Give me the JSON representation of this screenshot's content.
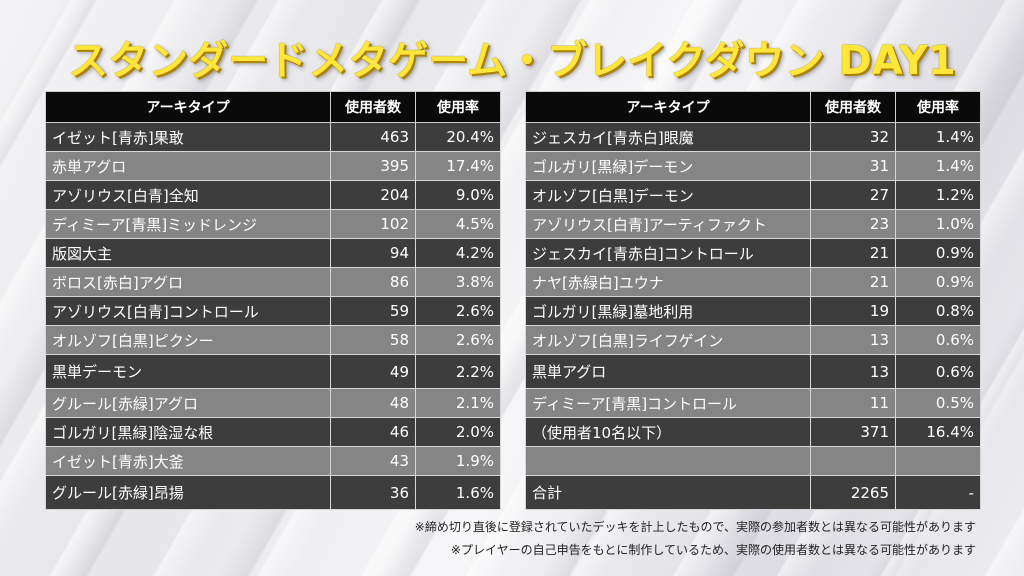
{
  "title": "スタンダードメタゲーム・ブレイクダウン DAY1",
  "headers": {
    "archetype": "アーキタイプ",
    "users": "使用者数",
    "rate": "使用率"
  },
  "left_rows": [
    {
      "name": "イゼット[青赤]果敢",
      "users": "463",
      "rate": "20.4%"
    },
    {
      "name": "赤単アグロ",
      "users": "395",
      "rate": "17.4%"
    },
    {
      "name": "アゾリウス[白青]全知",
      "users": "204",
      "rate": "9.0%"
    },
    {
      "name": "ディミーア[青黒]ミッドレンジ",
      "users": "102",
      "rate": "4.5%"
    },
    {
      "name": "版図大主",
      "users": "94",
      "rate": "4.2%"
    },
    {
      "name": "ボロス[赤白]アグロ",
      "users": "86",
      "rate": "3.8%"
    },
    {
      "name": "アゾリウス[白青]コントロール",
      "users": "59",
      "rate": "2.6%"
    },
    {
      "name": "オルゾフ[白黒]ピクシー",
      "users": "58",
      "rate": "2.6%"
    },
    {
      "name": "黒単デーモン",
      "users": "49",
      "rate": "2.2%"
    },
    {
      "name": "グルール[赤緑]アグロ",
      "users": "48",
      "rate": "2.1%"
    },
    {
      "name": "ゴルガリ[黒緑]陰湿な根",
      "users": "46",
      "rate": "2.0%"
    },
    {
      "name": "イゼット[青赤]大釜",
      "users": "43",
      "rate": "1.9%"
    },
    {
      "name": "グルール[赤緑]昂揚",
      "users": "36",
      "rate": "1.6%"
    }
  ],
  "right_rows": [
    {
      "name": "ジェスカイ[青赤白]眼魔",
      "users": "32",
      "rate": "1.4%"
    },
    {
      "name": "ゴルガリ[黒緑]デーモン",
      "users": "31",
      "rate": "1.4%"
    },
    {
      "name": "オルゾフ[白黒]デーモン",
      "users": "27",
      "rate": "1.2%"
    },
    {
      "name": "アゾリウス[白青]アーティファクト",
      "users": "23",
      "rate": "1.0%"
    },
    {
      "name": "ジェスカイ[青赤白]コントロール",
      "users": "21",
      "rate": "0.9%"
    },
    {
      "name": "ナヤ[赤緑白]ユウナ",
      "users": "21",
      "rate": "0.9%"
    },
    {
      "name": "ゴルガリ[黒緑]墓地利用",
      "users": "19",
      "rate": "0.8%"
    },
    {
      "name": "オルゾフ[白黒]ライフゲイン",
      "users": "13",
      "rate": "0.6%"
    },
    {
      "name": "黒単アグロ",
      "users": "13",
      "rate": "0.6%"
    },
    {
      "name": "ディミーア[青黒]コントロール",
      "users": "11",
      "rate": "0.5%"
    },
    {
      "name": "（使用者10名以下）",
      "users": "371",
      "rate": "16.4%"
    },
    {
      "name": "",
      "users": "",
      "rate": ""
    },
    {
      "name": "合計",
      "users": "2265",
      "rate": "-"
    }
  ],
  "notes": [
    "※締め切り直後に登録されていたデッキを計上したもので、実際の参加者数とは異なる可能性があります",
    "※プレイヤーの自己申告をもとに制作しているため、実際の使用者数とは異なる可能性があります"
  ]
}
